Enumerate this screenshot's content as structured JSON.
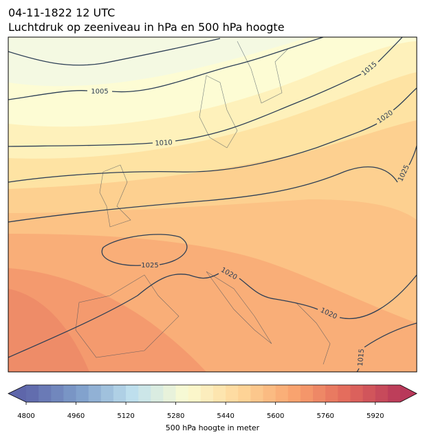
{
  "title": "04-11-1822 12 UTC",
  "subtitle": "Luchtdruk op zeeniveau in hPa en 500 hPa hoogte",
  "contour_labels": [
    1005,
    1010,
    1015,
    1020,
    1025,
    1025,
    1020,
    1020,
    1015
  ],
  "colorbar": {
    "range": [
      4800,
      6000
    ],
    "step": 40,
    "ticks": [
      4800,
      4960,
      5120,
      5280,
      5440,
      5600,
      5760,
      5920
    ],
    "label": "500 hPa hoogte in meter",
    "colors": [
      "#5e66aa",
      "#7f9fcb",
      "#bfe0ee",
      "#fbfbd2",
      "#fed79a",
      "#f9a46f",
      "#e36a5c",
      "#b8385a"
    ]
  }
}
